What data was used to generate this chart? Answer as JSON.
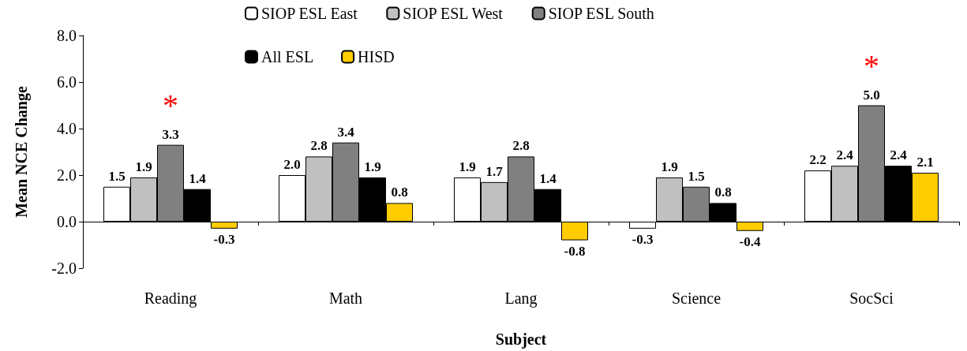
{
  "chart_data": {
    "type": "bar",
    "xlabel": "Subject",
    "ylabel": "Mean NCE Change",
    "categories": [
      "Reading",
      "Math",
      "Lang",
      "Science",
      "SocSci"
    ],
    "series": [
      {
        "name": "SIOP ESL East",
        "color": "#ffffff",
        "values": [
          1.5,
          2.0,
          1.9,
          -0.3,
          2.2
        ],
        "value_labels": [
          "1.5",
          "2.0",
          "1.9",
          "-0.3",
          "2.2"
        ]
      },
      {
        "name": "SIOP ESL West",
        "color": "#c0c0c0",
        "values": [
          1.9,
          2.8,
          1.7,
          1.9,
          2.4
        ],
        "value_labels": [
          "1.9",
          "2.8",
          "1.7",
          "1.9",
          "2.4"
        ]
      },
      {
        "name": "SIOP ESL South",
        "color": "#808080",
        "values": [
          3.3,
          3.4,
          2.8,
          1.5,
          5.0
        ],
        "value_labels": [
          "3.3",
          "3.4",
          "2.8",
          "1.5",
          "5.0"
        ]
      },
      {
        "name": "All ESL",
        "color": "#000000",
        "values": [
          1.4,
          1.9,
          1.4,
          0.8,
          2.4
        ],
        "value_labels": [
          "1.4",
          "1.9",
          "1.4",
          "0.8",
          "2.4"
        ]
      },
      {
        "name": "HISD",
        "color": "#ffcc00",
        "values": [
          -0.3,
          0.8,
          -0.8,
          -0.4,
          2.1
        ],
        "value_labels": [
          "-0.3",
          "0.8",
          "-0.8",
          "-0.4",
          "2.1"
        ]
      }
    ],
    "ylim": [
      -2,
      8
    ],
    "yticks": [
      {
        "value": -2,
        "label": "-2.0"
      },
      {
        "value": 0,
        "label": "0.0"
      },
      {
        "value": 2,
        "label": "2.0"
      },
      {
        "value": 4,
        "label": "4.0"
      },
      {
        "value": 6,
        "label": "6.0"
      },
      {
        "value": 8,
        "label": "8.0"
      }
    ],
    "annotations": [
      {
        "text": "*",
        "x": "Reading",
        "y": 3.3
      },
      {
        "text": "*",
        "x": "SocSci",
        "y": 5.0
      }
    ],
    "legend": "top"
  }
}
